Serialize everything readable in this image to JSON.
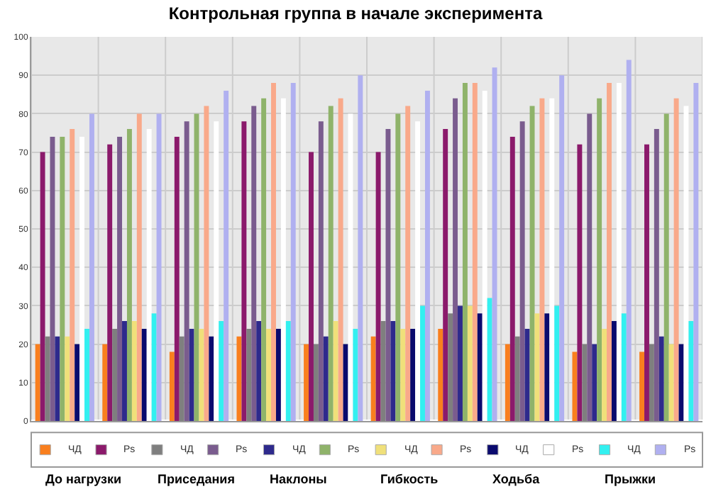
{
  "chart_data": {
    "type": "bar",
    "title": "Контрольная группа в начале эксперимента",
    "categories": [
      null,
      null,
      null,
      null,
      null,
      null,
      null,
      null,
      null,
      null
    ],
    "series": [
      {
        "name": "ЧД",
        "color": "#f97f1e",
        "values": [
          20,
          20,
          18,
          22,
          20,
          22,
          24,
          20,
          18,
          18
        ]
      },
      {
        "name": "Рs",
        "color": "#8b1a6b",
        "values": [
          70,
          72,
          74,
          78,
          70,
          70,
          76,
          74,
          72,
          72
        ]
      },
      {
        "name": "ЧД",
        "color": "#7f7f7f",
        "values": [
          22,
          24,
          22,
          24,
          20,
          26,
          28,
          22,
          20,
          20
        ]
      },
      {
        "name": "Рs",
        "color": "#7a5c8e",
        "values": [
          74,
          74,
          78,
          82,
          78,
          76,
          84,
          78,
          80,
          76
        ]
      },
      {
        "name": "ЧД",
        "color": "#2e2a8c",
        "values": [
          22,
          26,
          24,
          26,
          22,
          26,
          30,
          24,
          20,
          22
        ]
      },
      {
        "name": "Рs",
        "color": "#8fb36a",
        "values": [
          74,
          76,
          80,
          84,
          82,
          80,
          88,
          82,
          84,
          80
        ]
      },
      {
        "name": "ЧД",
        "color": "#f0e07a",
        "values": [
          22,
          26,
          24,
          24,
          26,
          24,
          30,
          28,
          24,
          20
        ]
      },
      {
        "name": "Рs",
        "color": "#f9a98a",
        "values": [
          76,
          80,
          82,
          88,
          84,
          82,
          88,
          84,
          88,
          84
        ]
      },
      {
        "name": "ЧД",
        "color": "#0a0a6e",
        "values": [
          20,
          24,
          22,
          24,
          20,
          24,
          28,
          28,
          26,
          20
        ]
      },
      {
        "name": "Рs",
        "color": "#ffffff",
        "values": [
          74,
          76,
          78,
          84,
          80,
          78,
          86,
          84,
          88,
          82
        ]
      },
      {
        "name": "ЧД",
        "color": "#33f0f0",
        "values": [
          24,
          28,
          26,
          26,
          24,
          30,
          32,
          30,
          28,
          26
        ]
      },
      {
        "name": "Рs",
        "color": "#b0b0f0",
        "values": [
          80,
          80,
          86,
          88,
          90,
          86,
          92,
          90,
          94,
          88
        ]
      }
    ],
    "ylim": [
      0,
      100
    ],
    "yticks": [
      0,
      10,
      20,
      30,
      40,
      50,
      60,
      70,
      80,
      90,
      100
    ],
    "grid": true,
    "legend": "bottom",
    "annotations": [
      "До нагрузки",
      "Приседания",
      "Наклоны",
      "Гибкость",
      "Ходьба",
      "Прыжки"
    ]
  }
}
